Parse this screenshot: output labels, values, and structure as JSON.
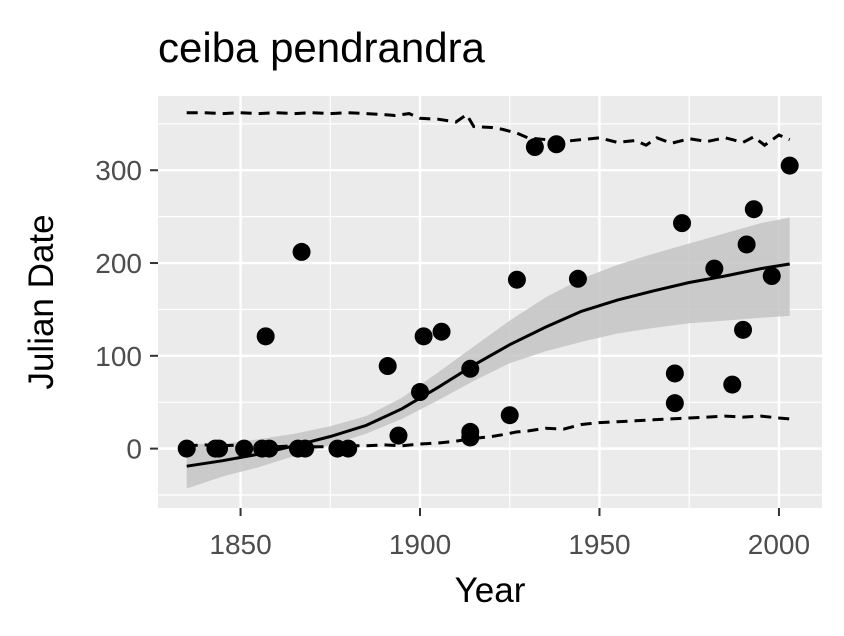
{
  "chart_data": {
    "type": "scatter",
    "title": "ceiba pendrandra",
    "xlabel": "Year",
    "ylabel": "Julian Date",
    "xlim": [
      1827,
      2012
    ],
    "ylim": [
      -64,
      380
    ],
    "x_ticks": [
      1850,
      1900,
      1950,
      2000
    ],
    "x_tick_labels": [
      "1850",
      "1900",
      "1950",
      "2000"
    ],
    "y_ticks": [
      0,
      100,
      200,
      300
    ],
    "y_tick_labels": [
      "0",
      "100",
      "200",
      "300"
    ],
    "grid": true,
    "legend": "none",
    "colors": {
      "panel": "#EBEBEB",
      "grid": "#FFFFFF",
      "points": "#000000",
      "fit_line": "#000000",
      "ribbon": "#C4C4C4",
      "dashed": "#000000"
    },
    "points": [
      {
        "x": 1835,
        "y": 0
      },
      {
        "x": 1843,
        "y": 0
      },
      {
        "x": 1844,
        "y": 0
      },
      {
        "x": 1851,
        "y": 0
      },
      {
        "x": 1856,
        "y": 0
      },
      {
        "x": 1858,
        "y": 0
      },
      {
        "x": 1857,
        "y": 121
      },
      {
        "x": 1866,
        "y": 0
      },
      {
        "x": 1867,
        "y": 212
      },
      {
        "x": 1868,
        "y": 0
      },
      {
        "x": 1877,
        "y": 0
      },
      {
        "x": 1880,
        "y": 0
      },
      {
        "x": 1891,
        "y": 89
      },
      {
        "x": 1894,
        "y": 14
      },
      {
        "x": 1900,
        "y": 61
      },
      {
        "x": 1901,
        "y": 121
      },
      {
        "x": 1906,
        "y": 126
      },
      {
        "x": 1914,
        "y": 86
      },
      {
        "x": 1914,
        "y": 18
      },
      {
        "x": 1914,
        "y": 12
      },
      {
        "x": 1925,
        "y": 36
      },
      {
        "x": 1927,
        "y": 182
      },
      {
        "x": 1932,
        "y": 325
      },
      {
        "x": 1938,
        "y": 328
      },
      {
        "x": 1944,
        "y": 183
      },
      {
        "x": 1971,
        "y": 81
      },
      {
        "x": 1971,
        "y": 49
      },
      {
        "x": 1973,
        "y": 243
      },
      {
        "x": 1982,
        "y": 194
      },
      {
        "x": 1987,
        "y": 69
      },
      {
        "x": 1990,
        "y": 128
      },
      {
        "x": 1991,
        "y": 220
      },
      {
        "x": 1993,
        "y": 258
      },
      {
        "x": 1998,
        "y": 186
      },
      {
        "x": 2003,
        "y": 305
      }
    ],
    "fit": {
      "x": [
        1835,
        1845,
        1855,
        1865,
        1875,
        1885,
        1895,
        1905,
        1915,
        1925,
        1935,
        1945,
        1955,
        1965,
        1975,
        1985,
        1995,
        2003
      ],
      "y": [
        -19,
        -13,
        -6,
        3,
        13,
        25,
        43,
        66,
        90,
        112,
        131,
        148,
        160,
        170,
        179,
        186,
        194,
        199
      ],
      "lower": [
        -43,
        -30,
        -20,
        -8,
        4,
        16,
        32,
        52,
        73,
        92,
        105,
        115,
        124,
        130,
        135,
        138,
        141,
        143
      ],
      "upper": [
        5,
        5,
        10,
        16,
        24,
        35,
        55,
        82,
        110,
        138,
        163,
        183,
        198,
        210,
        221,
        232,
        243,
        249
      ]
    },
    "upper_bound": {
      "x": [
        1835,
        1840,
        1845,
        1850,
        1855,
        1860,
        1865,
        1870,
        1875,
        1880,
        1885,
        1890,
        1893,
        1897,
        1900,
        1905,
        1910,
        1913,
        1915,
        1920,
        1923,
        1927,
        1930,
        1935,
        1940,
        1945,
        1950,
        1955,
        1960,
        1963,
        1966,
        1970,
        1975,
        1980,
        1985,
        1990,
        1993,
        1996,
        2000,
        2003
      ],
      "y": [
        362,
        362,
        361,
        362,
        361,
        362,
        361,
        362,
        361,
        362,
        361,
        360,
        359,
        361,
        356,
        355,
        352,
        360,
        347,
        346,
        344,
        340,
        335,
        333,
        331,
        333,
        335,
        330,
        332,
        327,
        335,
        329,
        334,
        331,
        335,
        330,
        336,
        327,
        338,
        333
      ]
    },
    "lower_bound": {
      "x": [
        1835,
        1840,
        1845,
        1850,
        1855,
        1860,
        1865,
        1870,
        1875,
        1880,
        1885,
        1890,
        1895,
        1900,
        1905,
        1910,
        1915,
        1920,
        1923,
        1927,
        1930,
        1935,
        1940,
        1945,
        1950,
        1955,
        1960,
        1965,
        1970,
        1975,
        1980,
        1985,
        1990,
        1995,
        2000,
        2003
      ],
      "y": [
        3,
        4,
        3,
        4,
        3,
        2,
        3,
        2,
        2,
        3,
        3,
        4,
        3,
        5,
        6,
        8,
        11,
        13,
        15,
        18,
        19,
        22,
        21,
        26,
        28,
        29,
        30,
        31,
        32,
        33,
        34,
        35,
        34,
        35,
        33,
        32
      ]
    }
  }
}
